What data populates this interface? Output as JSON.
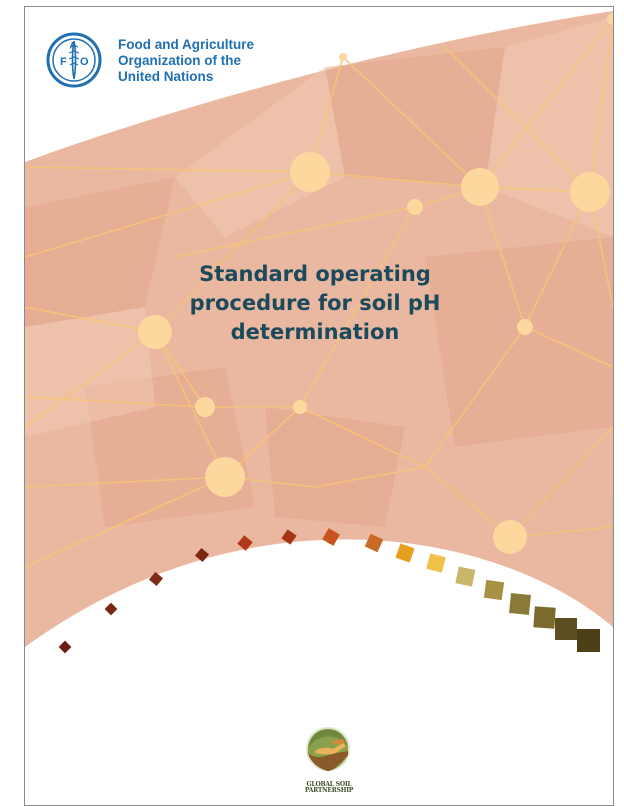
{
  "organization": {
    "name_lines": [
      "Food and Agriculture",
      "Organization of the",
      "United Nations"
    ],
    "logo_letters": "FAO",
    "logo_motto": "FIAT PANIS"
  },
  "document": {
    "title_lines": [
      "Standard operating",
      "procedure for soil pH",
      "determination"
    ]
  },
  "partner": {
    "name_line1": "GLOBAL SOIL",
    "name_line2": "PARTNERSHIP"
  },
  "colors": {
    "network_background": "#eab8a0",
    "network_lines": "#f7c477",
    "node_fill": "#fcd79e",
    "title_text": "#1b4a5c",
    "org_text": "#1f6fb2"
  },
  "icons": [
    "fao-emblem-icon",
    "global-soil-partnership-icon",
    "soil-color-scale-icon"
  ]
}
